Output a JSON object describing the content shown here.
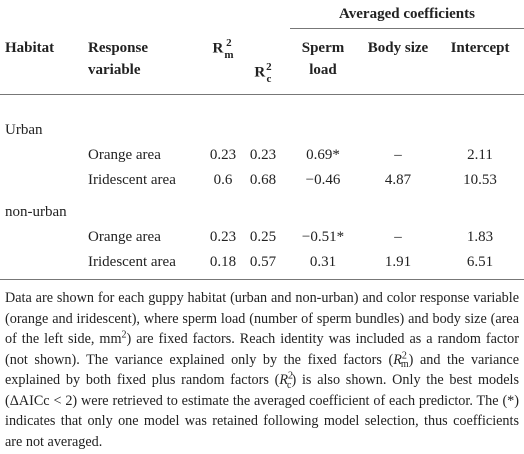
{
  "table": {
    "group_header": "Averaged coefficients",
    "columns": [
      "Habitat",
      "Response variable",
      {
        "base": "R",
        "sup": "2",
        "sub": "m"
      },
      {
        "base": "R",
        "sup": "2",
        "sub": "c"
      },
      "Sperm load",
      "Body size",
      "Intercept"
    ],
    "groups": [
      {
        "label": "Urban",
        "rows": [
          [
            "Orange area",
            "0.23",
            "0.23",
            "0.69*",
            "–",
            "2.11"
          ],
          [
            "Iridescent area",
            "0.6",
            "0.68",
            "−0.46",
            "4.87",
            "10.53"
          ]
        ]
      },
      {
        "label": "non-urban",
        "rows": [
          [
            "Orange area",
            "0.23",
            "0.25",
            "−0.51*",
            "–",
            "1.83"
          ],
          [
            "Iridescent area",
            "0.18",
            "0.57",
            "0.31",
            "1.91",
            "6.51"
          ]
        ]
      }
    ]
  },
  "footnote": [
    {
      "t": "Data are shown for each guppy habitat (urban and non-urban) and color response variable (orange and iridescent), where sperm load (number of sperm bundles) and body size (area of the left side, mm"
    },
    {
      "sup": "2"
    },
    {
      "t": ") are fixed factors. Reach identity was included as a random factor (not shown). The variance explained only by the fixed factors ("
    },
    {
      "i": "R"
    },
    {
      "sup": "2"
    },
    {
      "sub": "m"
    },
    {
      "t": ") and the variance explained by both fixed plus random factors ("
    },
    {
      "i": "R"
    },
    {
      "sup": "2"
    },
    {
      "sub": "c"
    },
    {
      "t": ") is also shown. Only the best models (ΔAICc < 2) were retrieved to estimate the averaged coefficient of each predictor. The (*) indicates that only one model was retained following model selection, thus coefficients are not averaged."
    }
  ]
}
